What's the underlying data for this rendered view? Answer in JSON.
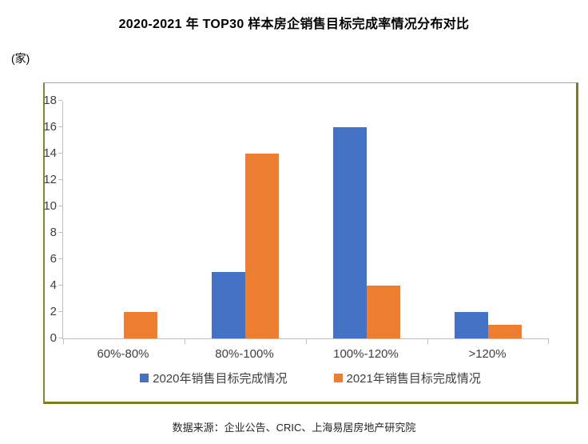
{
  "title": "2020-2021 年 TOP30 样本房企销售目标完成率情况分布对比",
  "unit_label": "(家)",
  "footer": "数据来源：企业公告、CRIC、上海易居房地产研究院",
  "colors": {
    "series_2020": "#4472C4",
    "series_2021": "#ED7D31",
    "axis": "#BFBFBF",
    "frame_border": "#7C7C21",
    "text": "#404040"
  },
  "chart_data": {
    "type": "bar",
    "title": "2020-2021 年 TOP30 样本房企销售目标完成率情况分布对比",
    "categories": [
      "60%-80%",
      "80%-100%",
      "100%-120%",
      ">120%"
    ],
    "series": [
      {
        "name": "2020年销售目标完成情况",
        "color": "#4472C4",
        "values": [
          0,
          5,
          16,
          2
        ]
      },
      {
        "name": "2021年销售目标完成情况",
        "color": "#ED7D31",
        "values": [
          2,
          14,
          4,
          1
        ]
      }
    ],
    "xlabel": "",
    "ylabel": "(家)",
    "ylim": [
      0,
      18
    ],
    "ytick_step": 2,
    "grid": false,
    "legend_position": "bottom",
    "source_note": "数据来源：企业公告、CRIC、上海易居房地产研究院"
  }
}
